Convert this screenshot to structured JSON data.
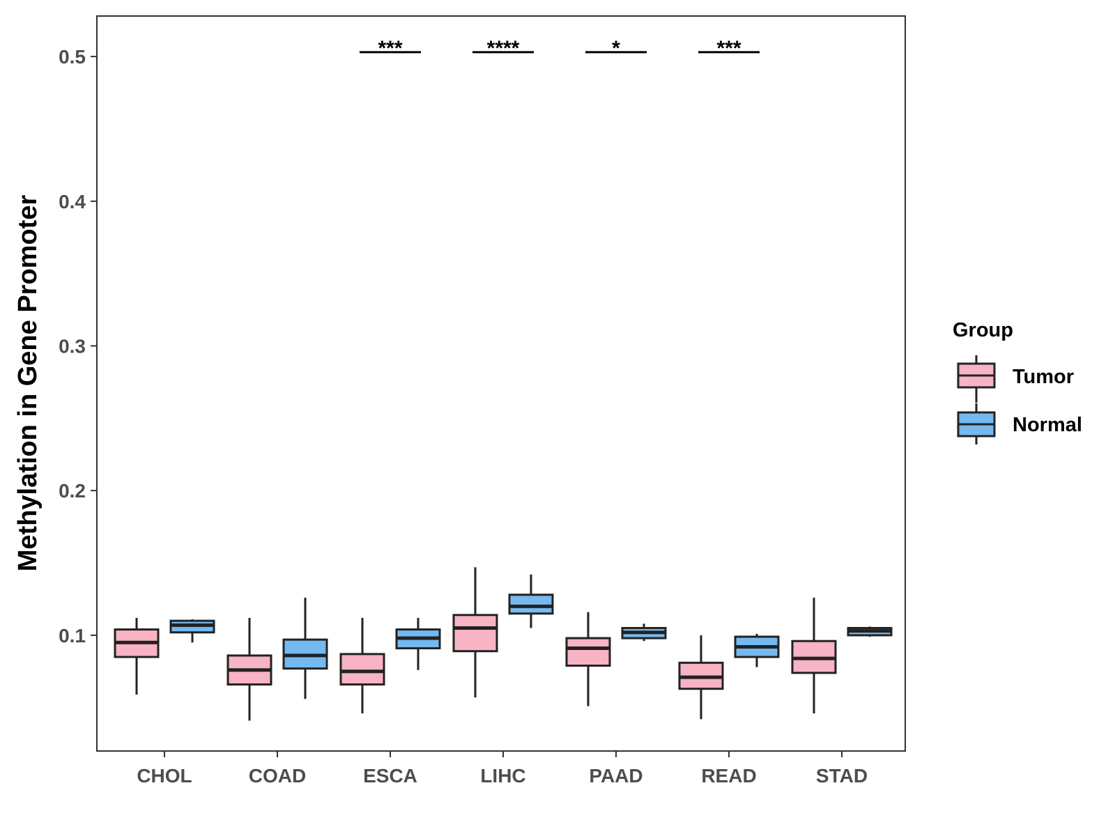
{
  "chart_data": {
    "type": "boxplot",
    "title": "",
    "xlabel": "",
    "ylabel": "Methylation in Gene Promoter",
    "ylim": [
      0.02,
      0.528
    ],
    "yticks": [
      0.1,
      0.2,
      0.3,
      0.4,
      0.5
    ],
    "ytick_labels": [
      "0.1",
      "0.2",
      "0.3",
      "0.4",
      "0.5"
    ],
    "categories": [
      "CHOL",
      "COAD",
      "ESCA",
      "LIHC",
      "PAAD",
      "READ",
      "STAD"
    ],
    "legend": {
      "title": "Group",
      "position": "right",
      "entries": [
        {
          "name": "Tumor",
          "color": "#f8b3c4"
        },
        {
          "name": "Normal",
          "color": "#74b9f0"
        }
      ]
    },
    "series": [
      {
        "name": "Tumor",
        "color": "#f8b3c4",
        "boxes": [
          {
            "category": "CHOL",
            "whisker_low": 0.059,
            "q1": 0.085,
            "median": 0.095,
            "q3": 0.104,
            "whisker_high": 0.112
          },
          {
            "category": "COAD",
            "whisker_low": 0.041,
            "q1": 0.066,
            "median": 0.076,
            "q3": 0.086,
            "whisker_high": 0.112
          },
          {
            "category": "ESCA",
            "whisker_low": 0.046,
            "q1": 0.066,
            "median": 0.075,
            "q3": 0.087,
            "whisker_high": 0.112
          },
          {
            "category": "LIHC",
            "whisker_low": 0.057,
            "q1": 0.089,
            "median": 0.105,
            "q3": 0.114,
            "whisker_high": 0.147
          },
          {
            "category": "PAAD",
            "whisker_low": 0.051,
            "q1": 0.079,
            "median": 0.091,
            "q3": 0.098,
            "whisker_high": 0.116
          },
          {
            "category": "READ",
            "whisker_low": 0.042,
            "q1": 0.063,
            "median": 0.071,
            "q3": 0.081,
            "whisker_high": 0.1
          },
          {
            "category": "STAD",
            "whisker_low": 0.046,
            "q1": 0.074,
            "median": 0.084,
            "q3": 0.096,
            "whisker_high": 0.126
          }
        ]
      },
      {
        "name": "Normal",
        "color": "#74b9f0",
        "boxes": [
          {
            "category": "CHOL",
            "whisker_low": 0.095,
            "q1": 0.102,
            "median": 0.107,
            "q3": 0.11,
            "whisker_high": 0.111
          },
          {
            "category": "COAD",
            "whisker_low": 0.056,
            "q1": 0.077,
            "median": 0.086,
            "q3": 0.097,
            "whisker_high": 0.126
          },
          {
            "category": "ESCA",
            "whisker_low": 0.076,
            "q1": 0.091,
            "median": 0.098,
            "q3": 0.104,
            "whisker_high": 0.112
          },
          {
            "category": "LIHC",
            "whisker_low": 0.105,
            "q1": 0.115,
            "median": 0.12,
            "q3": 0.128,
            "whisker_high": 0.142
          },
          {
            "category": "PAAD",
            "whisker_low": 0.096,
            "q1": 0.098,
            "median": 0.102,
            "q3": 0.105,
            "whisker_high": 0.108
          },
          {
            "category": "READ",
            "whisker_low": 0.078,
            "q1": 0.085,
            "median": 0.092,
            "q3": 0.099,
            "whisker_high": 0.101
          },
          {
            "category": "STAD",
            "whisker_low": 0.099,
            "q1": 0.1,
            "median": 0.103,
            "q3": 0.105,
            "whisker_high": 0.106
          }
        ]
      }
    ],
    "annotations": [
      {
        "category": "ESCA",
        "y": 0.503,
        "label": "***"
      },
      {
        "category": "LIHC",
        "y": 0.503,
        "label": "****"
      },
      {
        "category": "PAAD",
        "y": 0.503,
        "label": "*"
      },
      {
        "category": "READ",
        "y": 0.503,
        "label": "***"
      }
    ],
    "grid": false
  }
}
